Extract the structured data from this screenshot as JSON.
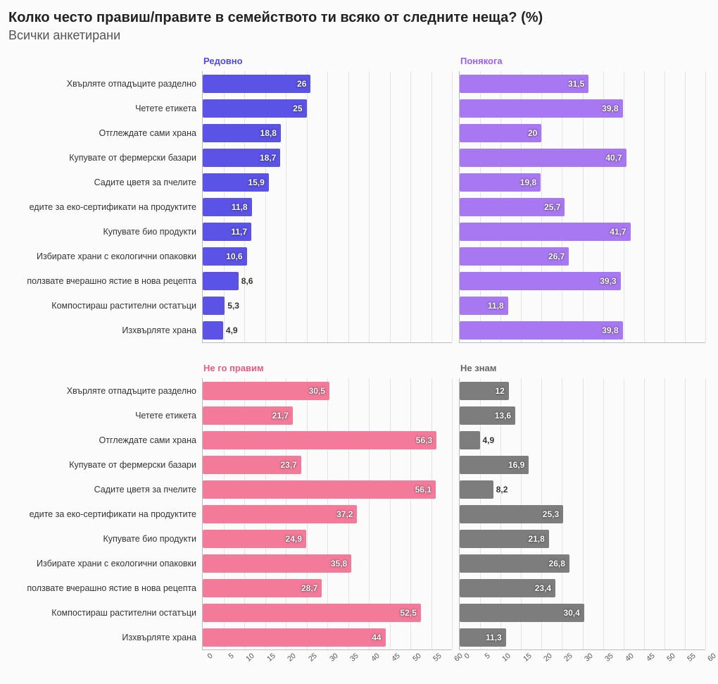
{
  "title": "Колко често правиш/правите в семейството ти всяко от следните неща? (%)",
  "subtitle": "Всички анкетирани",
  "xmax": 60,
  "xtick_step": 5,
  "xticks": [
    "0",
    "5",
    "10",
    "15",
    "20",
    "25",
    "30",
    "35",
    "40",
    "45",
    "50",
    "55",
    "60"
  ],
  "categories": [
    "Хвърляте отпадъците разделно",
    "Четете етикета",
    "Отглеждате сами храна",
    "Купувате от фермерски базари",
    "Садите цветя за пчелите",
    "едите за еко-сертификати на продуктите",
    "Купувате био продукти",
    "Избирате храни с екологични опаковки",
    "ползвате вчерашно ястие в нова рецепта",
    "Компостираш растителни остатъци",
    "Изхвърляте храна"
  ],
  "panels": [
    {
      "key": "regular",
      "title": "Редовно",
      "title_color": "#5048d9",
      "bar_color": "#5b52e6",
      "values": [
        26,
        25,
        18.8,
        18.7,
        15.9,
        11.8,
        11.7,
        10.6,
        8.6,
        5.3,
        4.9
      ],
      "labels": [
        "26",
        "25",
        "18,8",
        "18,7",
        "15,9",
        "11,8",
        "11,7",
        "10,6",
        "8,6",
        "5,3",
        "4,9"
      ],
      "show_axis": false
    },
    {
      "key": "sometimes",
      "title": "Понякога",
      "title_color": "#9a5fe8",
      "bar_color": "#a878f2",
      "values": [
        31.5,
        39.8,
        20,
        40.7,
        19.8,
        25.7,
        41.7,
        26.7,
        39.3,
        11.8,
        39.8
      ],
      "labels": [
        "31,5",
        "39,8",
        "20",
        "40,7",
        "19,8",
        "25,7",
        "41,7",
        "26,7",
        "39,3",
        "11,8",
        "39,8"
      ],
      "show_axis": false
    },
    {
      "key": "dont",
      "title": "Не го правим",
      "title_color": "#e85a82",
      "bar_color": "#f47a9a",
      "values": [
        30.5,
        21.7,
        56.3,
        23.7,
        56.1,
        37.2,
        24.9,
        35.8,
        28.7,
        52.5,
        44
      ],
      "labels": [
        "30,5",
        "21,7",
        "56,3",
        "23,7",
        "56,1",
        "37,2",
        "24,9",
        "35,8",
        "28,7",
        "52,5",
        "44"
      ],
      "show_axis": true
    },
    {
      "key": "dontknow",
      "title": "Не знам",
      "title_color": "#666666",
      "bar_color": "#7d7d7d",
      "values": [
        12,
        13.6,
        4.9,
        16.9,
        8.2,
        25.3,
        21.8,
        26.8,
        23.4,
        30.4,
        11.3
      ],
      "labels": [
        "12",
        "13,6",
        "4,9",
        "16,9",
        "8,2",
        "25,3",
        "21,8",
        "26,8",
        "23,4",
        "30,4",
        "11,3"
      ],
      "show_axis": true
    }
  ],
  "background_color": "#fbfbfb",
  "grid_color": "#e3e3e3",
  "axis_color": "#bbbbbb",
  "label_outside_threshold": 9
}
